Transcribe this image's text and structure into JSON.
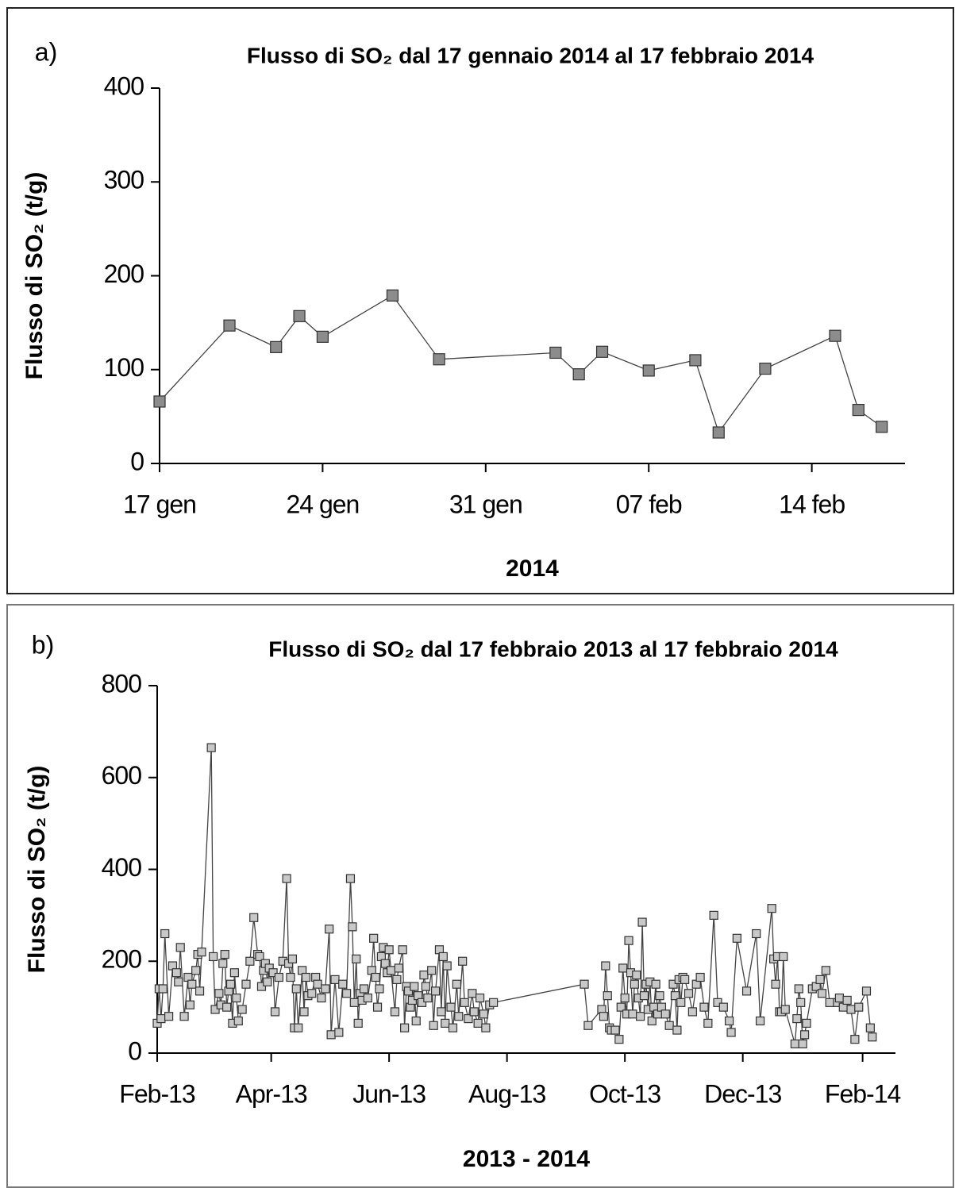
{
  "chart_data": [
    {
      "type": "line",
      "label": "a)",
      "title": "Flusso di SO₂ dal 17 gennaio 2014 al 17 febbraio 2014",
      "x_label": "2014",
      "y_label": "Flusso di SO₂ (t/g)",
      "x": [
        "2014-01-17",
        "2014-01-20",
        "2014-01-22",
        "2014-01-23",
        "2014-01-24",
        "2014-01-27",
        "2014-01-29",
        "2014-02-03",
        "2014-02-04",
        "2014-02-05",
        "2014-02-07",
        "2014-02-09",
        "2014-02-10",
        "2014-02-12",
        "2014-02-15",
        "2014-02-16",
        "2014-02-17"
      ],
      "values": [
        66,
        147,
        124,
        157,
        135,
        179,
        111,
        118,
        95,
        119,
        99,
        110,
        33,
        101,
        136,
        57,
        39
      ],
      "color": "#8c8c8c",
      "line_color": "#444444",
      "xlim": [
        "2014-01-17",
        "2014-02-18"
      ],
      "xticks": [
        {
          "value": "2014-01-17",
          "label": "17 gen"
        },
        {
          "value": "2014-01-24",
          "label": "24 gen"
        },
        {
          "value": "2014-01-31",
          "label": "31 gen"
        },
        {
          "value": "2014-02-07",
          "label": "07 feb"
        },
        {
          "value": "2014-02-14",
          "label": "14 feb"
        }
      ],
      "ylim": [
        0,
        400
      ],
      "yticks": [
        0,
        100,
        200,
        300,
        400
      ]
    },
    {
      "type": "line",
      "label": "b)",
      "title": "Flusso di SO₂ dal 17 febbraio 2013 al 17 febbraio 2014",
      "x_label": "2013 - 2014",
      "y_label": "Flusso di SO₂ (t/g)",
      "x": [
        "2013-02-01",
        "2013-02-02",
        "2013-02-03",
        "2013-02-04",
        "2013-02-05",
        "2013-02-07",
        "2013-02-09",
        "2013-02-11",
        "2013-02-12",
        "2013-02-13",
        "2013-02-15",
        "2013-02-17",
        "2013-02-18",
        "2013-02-19",
        "2013-02-21",
        "2013-02-22",
        "2013-02-23",
        "2013-02-24",
        "2013-03-01",
        "2013-03-02",
        "2013-03-03",
        "2013-03-05",
        "2013-03-06",
        "2013-03-07",
        "2013-03-08",
        "2013-03-09",
        "2013-03-10",
        "2013-03-11",
        "2013-03-12",
        "2013-03-13",
        "2013-03-14",
        "2013-03-15",
        "2013-03-17",
        "2013-03-19",
        "2013-03-21",
        "2013-03-23",
        "2013-03-25",
        "2013-03-26",
        "2013-03-27",
        "2013-03-28",
        "2013-03-29",
        "2013-03-30",
        "2013-03-31",
        "2013-04-02",
        "2013-04-03",
        "2013-04-05",
        "2013-04-07",
        "2013-04-09",
        "2013-04-10",
        "2013-04-11",
        "2013-04-12",
        "2013-04-13",
        "2013-04-14",
        "2013-04-15",
        "2013-04-17",
        "2013-04-18",
        "2013-04-19",
        "2013-04-20",
        "2013-04-22",
        "2013-04-24",
        "2013-04-25",
        "2013-04-27",
        "2013-04-29",
        "2013-05-01",
        "2013-05-02",
        "2013-05-04",
        "2013-05-06",
        "2013-05-08",
        "2013-05-10",
        "2013-05-12",
        "2013-05-13",
        "2013-05-14",
        "2013-05-15",
        "2013-05-16",
        "2013-05-17",
        "2013-05-18",
        "2013-05-19",
        "2013-05-21",
        "2013-05-23",
        "2013-05-24",
        "2013-05-25",
        "2013-05-26",
        "2013-05-27",
        "2013-05-28",
        "2013-05-29",
        "2013-05-30",
        "2013-05-31",
        "2013-06-01",
        "2013-06-02",
        "2013-06-04",
        "2013-06-05",
        "2013-06-06",
        "2013-06-08",
        "2013-06-09",
        "2013-06-10",
        "2013-06-11",
        "2013-06-12",
        "2013-06-13",
        "2013-06-14",
        "2013-06-15",
        "2013-06-16",
        "2013-06-18",
        "2013-06-19",
        "2013-06-20",
        "2013-06-21",
        "2013-06-23",
        "2013-06-24",
        "2013-06-25",
        "2013-06-27",
        "2013-06-28",
        "2013-06-29",
        "2013-06-30",
        "2013-07-01",
        "2013-07-03",
        "2013-07-04",
        "2013-07-06",
        "2013-07-07",
        "2013-07-09",
        "2013-07-10",
        "2013-07-12",
        "2013-07-14",
        "2013-07-15",
        "2013-07-17",
        "2013-07-18",
        "2013-07-20",
        "2013-07-21",
        "2013-07-23",
        "2013-07-25",
        "2013-09-10",
        "2013-09-12",
        "2013-09-19",
        "2013-09-20",
        "2013-09-21",
        "2013-09-22",
        "2013-09-23",
        "2013-09-24",
        "2013-09-26",
        "2013-09-28",
        "2013-09-29",
        "2013-09-30",
        "2013-10-01",
        "2013-10-02",
        "2013-10-03",
        "2013-10-04",
        "2013-10-05",
        "2013-10-06",
        "2013-10-07",
        "2013-10-08",
        "2013-10-09",
        "2013-10-10",
        "2013-10-11",
        "2013-10-12",
        "2013-10-13",
        "2013-10-14",
        "2013-10-15",
        "2013-10-16",
        "2013-10-17",
        "2013-10-18",
        "2013-10-19",
        "2013-10-20",
        "2013-10-22",
        "2013-10-24",
        "2013-10-26",
        "2013-10-27",
        "2013-10-28",
        "2013-10-29",
        "2013-10-30",
        "2013-10-31",
        "2013-11-01",
        "2013-11-03",
        "2013-11-05",
        "2013-11-07",
        "2013-11-09",
        "2013-11-11",
        "2013-11-13",
        "2013-11-16",
        "2013-11-18",
        "2013-11-21",
        "2013-11-24",
        "2013-11-25",
        "2013-11-28",
        "2013-12-03",
        "2013-12-08",
        "2013-12-10",
        "2013-12-16",
        "2013-12-17",
        "2013-12-18",
        "2013-12-19",
        "2013-12-20",
        "2013-12-21",
        "2013-12-22",
        "2013-12-23",
        "2013-12-28",
        "2013-12-29",
        "2013-12-30",
        "2013-12-31",
        "2014-01-01",
        "2014-01-02",
        "2014-01-03",
        "2014-01-06",
        "2014-01-08",
        "2014-01-10",
        "2014-01-11",
        "2014-01-13",
        "2014-01-15",
        "2014-01-19",
        "2014-01-20",
        "2014-01-22",
        "2014-01-24",
        "2014-01-26",
        "2014-01-28",
        "2014-01-30",
        "2014-02-03",
        "2014-02-05",
        "2014-02-06"
      ],
      "values": [
        65,
        140,
        75,
        140,
        260,
        80,
        190,
        175,
        155,
        230,
        80,
        165,
        105,
        150,
        180,
        215,
        135,
        220,
        665,
        210,
        95,
        130,
        105,
        195,
        215,
        100,
        135,
        150,
        65,
        175,
        120,
        70,
        95,
        150,
        200,
        295,
        215,
        210,
        145,
        180,
        195,
        155,
        185,
        175,
        90,
        165,
        200,
        380,
        195,
        165,
        205,
        55,
        140,
        55,
        180,
        90,
        165,
        125,
        130,
        165,
        150,
        120,
        140,
        270,
        40,
        160,
        45,
        150,
        130,
        380,
        275,
        110,
        205,
        65,
        130,
        115,
        140,
        120,
        180,
        250,
        165,
        100,
        140,
        210,
        230,
        195,
        175,
        225,
        180,
        90,
        160,
        185,
        225,
        55,
        145,
        135,
        100,
        115,
        145,
        70,
        125,
        110,
        170,
        145,
        120,
        180,
        60,
        135,
        225,
        90,
        210,
        65,
        190,
        100,
        55,
        150,
        80,
        200,
        110,
        75,
        130,
        90,
        65,
        120,
        85,
        55,
        105,
        110,
        150,
        60,
        95,
        80,
        190,
        125,
        55,
        50,
        50,
        30,
        100,
        185,
        120,
        85,
        245,
        175,
        85,
        150,
        170,
        120,
        80,
        285,
        125,
        150,
        95,
        155,
        70,
        100,
        150,
        85,
        125,
        100,
        85,
        60,
        150,
        125,
        50,
        160,
        110,
        165,
        160,
        130,
        90,
        150,
        165,
        100,
        65,
        300,
        110,
        100,
        70,
        45,
        250,
        135,
        260,
        70,
        315,
        205,
        150,
        210,
        90,
        90,
        210,
        95,
        20,
        75,
        140,
        110,
        20,
        40,
        65,
        140,
        145,
        160,
        130,
        180,
        110,
        110,
        120,
        100,
        115,
        95,
        30,
        100,
        135,
        55,
        35
      ],
      "color": "#c8c8c8",
      "line_color": "#444444",
      "xlim": [
        "2013-02-01",
        "2014-02-18"
      ],
      "xticks": [
        {
          "value": "2013-02-01",
          "label": "Feb-13"
        },
        {
          "value": "2013-04-01",
          "label": "Apr-13"
        },
        {
          "value": "2013-06-01",
          "label": "Jun-13"
        },
        {
          "value": "2013-08-01",
          "label": "Aug-13"
        },
        {
          "value": "2013-10-01",
          "label": "Oct-13"
        },
        {
          "value": "2013-12-01",
          "label": "Dec-13"
        },
        {
          "value": "2014-02-01",
          "label": "Feb-14"
        }
      ],
      "ylim": [
        0,
        800
      ],
      "yticks": [
        0,
        200,
        400,
        600,
        800
      ]
    }
  ]
}
